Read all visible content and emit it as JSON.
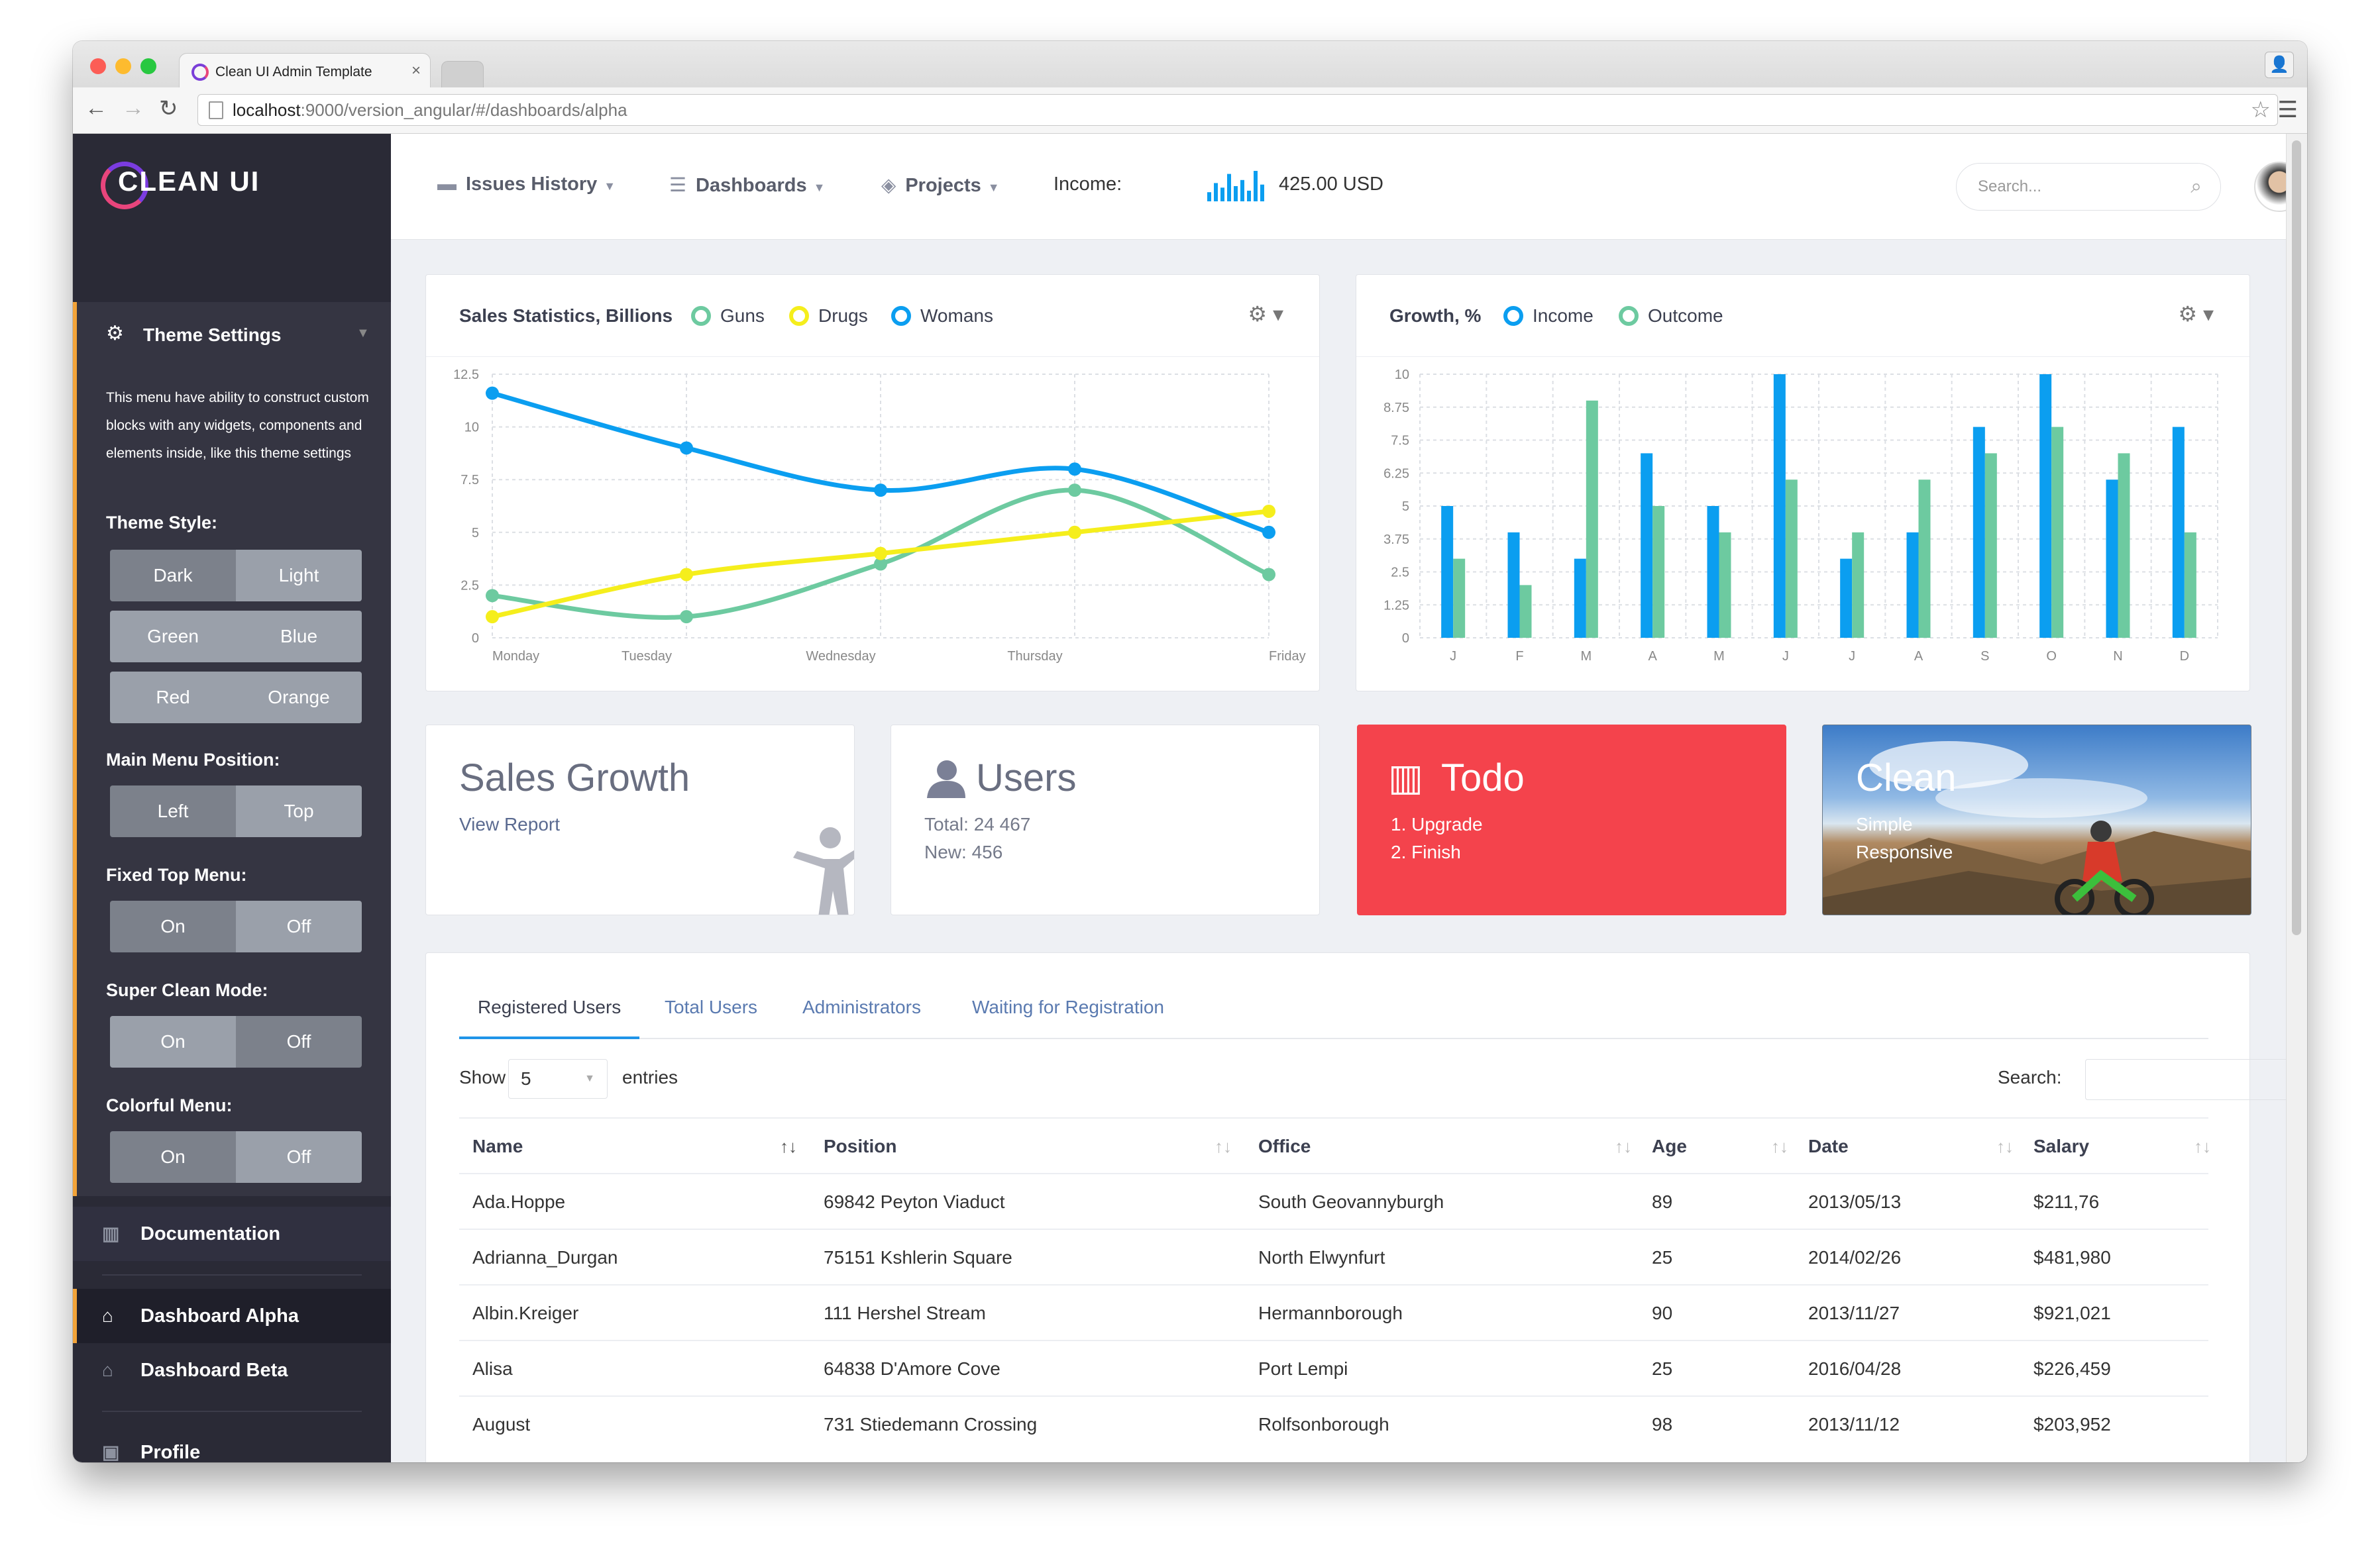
{
  "browser": {
    "tab_title": "Clean UI Admin Template",
    "url_host": "localhost",
    "url_path": ":9000/version_angular/#/dashboards/alpha"
  },
  "brand": {
    "logo_text": "CLEAN UI"
  },
  "sidebar": {
    "panel_title": "Theme Settings",
    "panel_desc": "This menu have ability to construct custom blocks with any widgets, components and elements inside, like this theme settings",
    "theme_style": {
      "label": "Theme Style:",
      "options": [
        "Dark",
        "Light",
        "Green",
        "Blue",
        "Red",
        "Orange"
      ]
    },
    "menu_position": {
      "label": "Main Menu Position:",
      "options": [
        "Left",
        "Top"
      ]
    },
    "fixed_top": {
      "label": "Fixed Top Menu:",
      "options": [
        "On",
        "Off"
      ]
    },
    "super_clean": {
      "label": "Super Clean Mode:",
      "options": [
        "On",
        "Off"
      ]
    },
    "colorful": {
      "label": "Colorful Menu:",
      "options": [
        "On",
        "Off"
      ]
    },
    "items": [
      {
        "label": "Documentation",
        "icon": "books-icon"
      },
      {
        "label": "Dashboard Alpha",
        "icon": "home-icon"
      },
      {
        "label": "Dashboard Beta",
        "icon": "home-icon"
      },
      {
        "label": "Profile",
        "icon": "profile-icon"
      }
    ],
    "accent": "#f2a338"
  },
  "topbar": {
    "nav": [
      {
        "label": "Issues History",
        "icon": "folder-icon"
      },
      {
        "label": "Dashboards",
        "icon": "database-icon"
      },
      {
        "label": "Projects",
        "icon": "tag-icon"
      }
    ],
    "income_label": "Income:",
    "income_value": "425.00 USD",
    "income_bars": [
      0.3,
      0.6,
      0.45,
      0.9,
      0.5,
      0.7,
      0.35,
      1.0,
      0.55
    ],
    "search_placeholder": "Search..."
  },
  "chart_sales": {
    "title": "Sales Statistics, Billions",
    "legend": [
      "Guns",
      "Drugs",
      "Womans"
    ]
  },
  "chart_growth": {
    "title": "Growth, %",
    "legend": [
      "Income",
      "Outcome"
    ]
  },
  "chart_data": [
    {
      "type": "line",
      "title": "Sales Statistics, Billions",
      "categories": [
        "Monday",
        "Tuesday",
        "Wednesday",
        "Thursday",
        "Friday"
      ],
      "ylim": [
        0,
        12.5
      ],
      "yticks": [
        "0",
        "2.5",
        "5",
        "7.5",
        "10",
        "12.5"
      ],
      "grid": true,
      "series": [
        {
          "name": "Guns",
          "color": "#6dcaa0",
          "values": [
            2,
            1,
            3.5,
            7,
            3
          ]
        },
        {
          "name": "Drugs",
          "color": "#f5ee1c",
          "values": [
            1,
            3,
            4,
            5,
            6
          ]
        },
        {
          "name": "Womans",
          "color": "#0b9ef0",
          "values": [
            11.6,
            9,
            7,
            8,
            5
          ]
        }
      ]
    },
    {
      "type": "bar",
      "title": "Growth, %",
      "categories": [
        "J",
        "F",
        "M",
        "A",
        "M",
        "J",
        "J",
        "A",
        "S",
        "O",
        "N",
        "D"
      ],
      "ylim": [
        0,
        10
      ],
      "yticks": [
        "0",
        "1.25",
        "2.5",
        "3.75",
        "5",
        "6.25",
        "7.5",
        "8.75",
        "10"
      ],
      "grid": true,
      "series": [
        {
          "name": "Income",
          "color": "#0b9ef0",
          "values": [
            5,
            4,
            3,
            7,
            5,
            10,
            3,
            4,
            8,
            10,
            6,
            8
          ]
        },
        {
          "name": "Outcome",
          "color": "#6dcaa0",
          "values": [
            3,
            2,
            9,
            5,
            4,
            6,
            4,
            6,
            7,
            8,
            7,
            4
          ]
        }
      ]
    }
  ],
  "stats": {
    "sales": {
      "title": "Sales Growth",
      "link": "View Report"
    },
    "users": {
      "title": "Users",
      "total": "Total: 24 467",
      "new": "New: 456"
    },
    "todo": {
      "title": "Todo",
      "item1": "1. Upgrade",
      "item2": "2. Finish",
      "color": "#f4434c"
    },
    "clean": {
      "title": "Clean",
      "line1": "Simple",
      "line2": "Responsive"
    }
  },
  "table": {
    "tabs": [
      "Registered Users",
      "Total Users",
      "Administrators",
      "Waiting for Registration"
    ],
    "show_label": "Show",
    "show_value": "5",
    "entries_label": "entries",
    "search_label": "Search:",
    "columns": [
      "Name",
      "Position",
      "Office",
      "Age",
      "Date",
      "Salary"
    ],
    "rows": [
      [
        "Ada.Hoppe",
        "69842 Peyton Viaduct",
        "South Geovannyburgh",
        "89",
        "2013/05/13",
        "$211,76"
      ],
      [
        "Adrianna_Durgan",
        "75151 Kshlerin Square",
        "North Elwynfurt",
        "25",
        "2014/02/26",
        "$481,980"
      ],
      [
        "Albin.Kreiger",
        "111 Hershel Stream",
        "Hermannborough",
        "90",
        "2013/11/27",
        "$921,021"
      ],
      [
        "Alisa",
        "64838 D'Amore Cove",
        "Port Lempi",
        "25",
        "2016/04/28",
        "$226,459"
      ],
      [
        "August",
        "731 Stiedemann Crossing",
        "Rolfsonborough",
        "98",
        "2013/11/12",
        "$203,952"
      ]
    ]
  }
}
